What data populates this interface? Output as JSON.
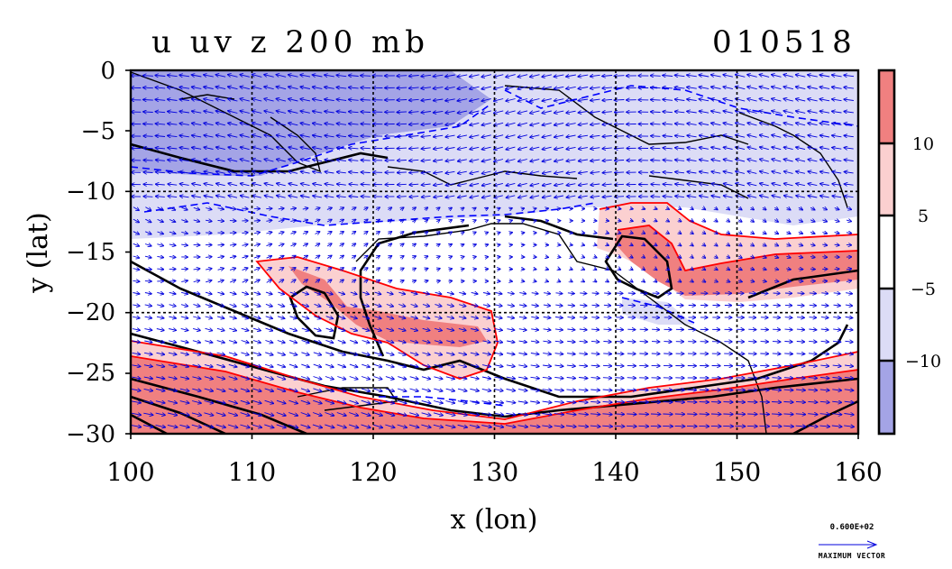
{
  "chart_data": {
    "type": "heatmap",
    "title_left": "u uv z 200 mb",
    "title_right": "010518",
    "xlabel": "x (lon)",
    "ylabel": "y (lat)",
    "xlim": [
      100,
      160
    ],
    "ylim": [
      -30,
      0
    ],
    "xticks": [
      "100",
      "110",
      "120",
      "130",
      "140",
      "150",
      "160"
    ],
    "yticks": [
      "0",
      "−5",
      "−10",
      "−15",
      "−20",
      "−25",
      "−30"
    ],
    "grid": true,
    "colorbar": {
      "position": "right",
      "tick_labels": [
        "10",
        "5",
        "−5",
        "−10"
      ],
      "levels": [
        {
          "range": "> 10",
          "color": "#f08080"
        },
        {
          "range": "5 to 10",
          "color": "#fbd0d0"
        },
        {
          "range": "-5 to 5",
          "color": "#ffffff"
        },
        {
          "range": "-10 to -5",
          "color": "#dcdcf6"
        },
        {
          "range": "< -10",
          "color": "#a4a4e6"
        }
      ]
    },
    "vector_legend": {
      "value_label": "0.600E+02",
      "caption": "MAXIMUM VECTOR"
    },
    "fields": [
      "u wind (shaded)",
      "uv wind vectors",
      "z geopotential (black contours)"
    ]
  },
  "colors": {
    "positive_strong": "#f08080",
    "positive_weak": "#fbd0d0",
    "negative_weak": "#dcdcf6",
    "negative_strong": "#a4a4e6",
    "vector": "#0000dd",
    "contour_positive": "#ff0000",
    "contour_negative": "#0000ff"
  }
}
